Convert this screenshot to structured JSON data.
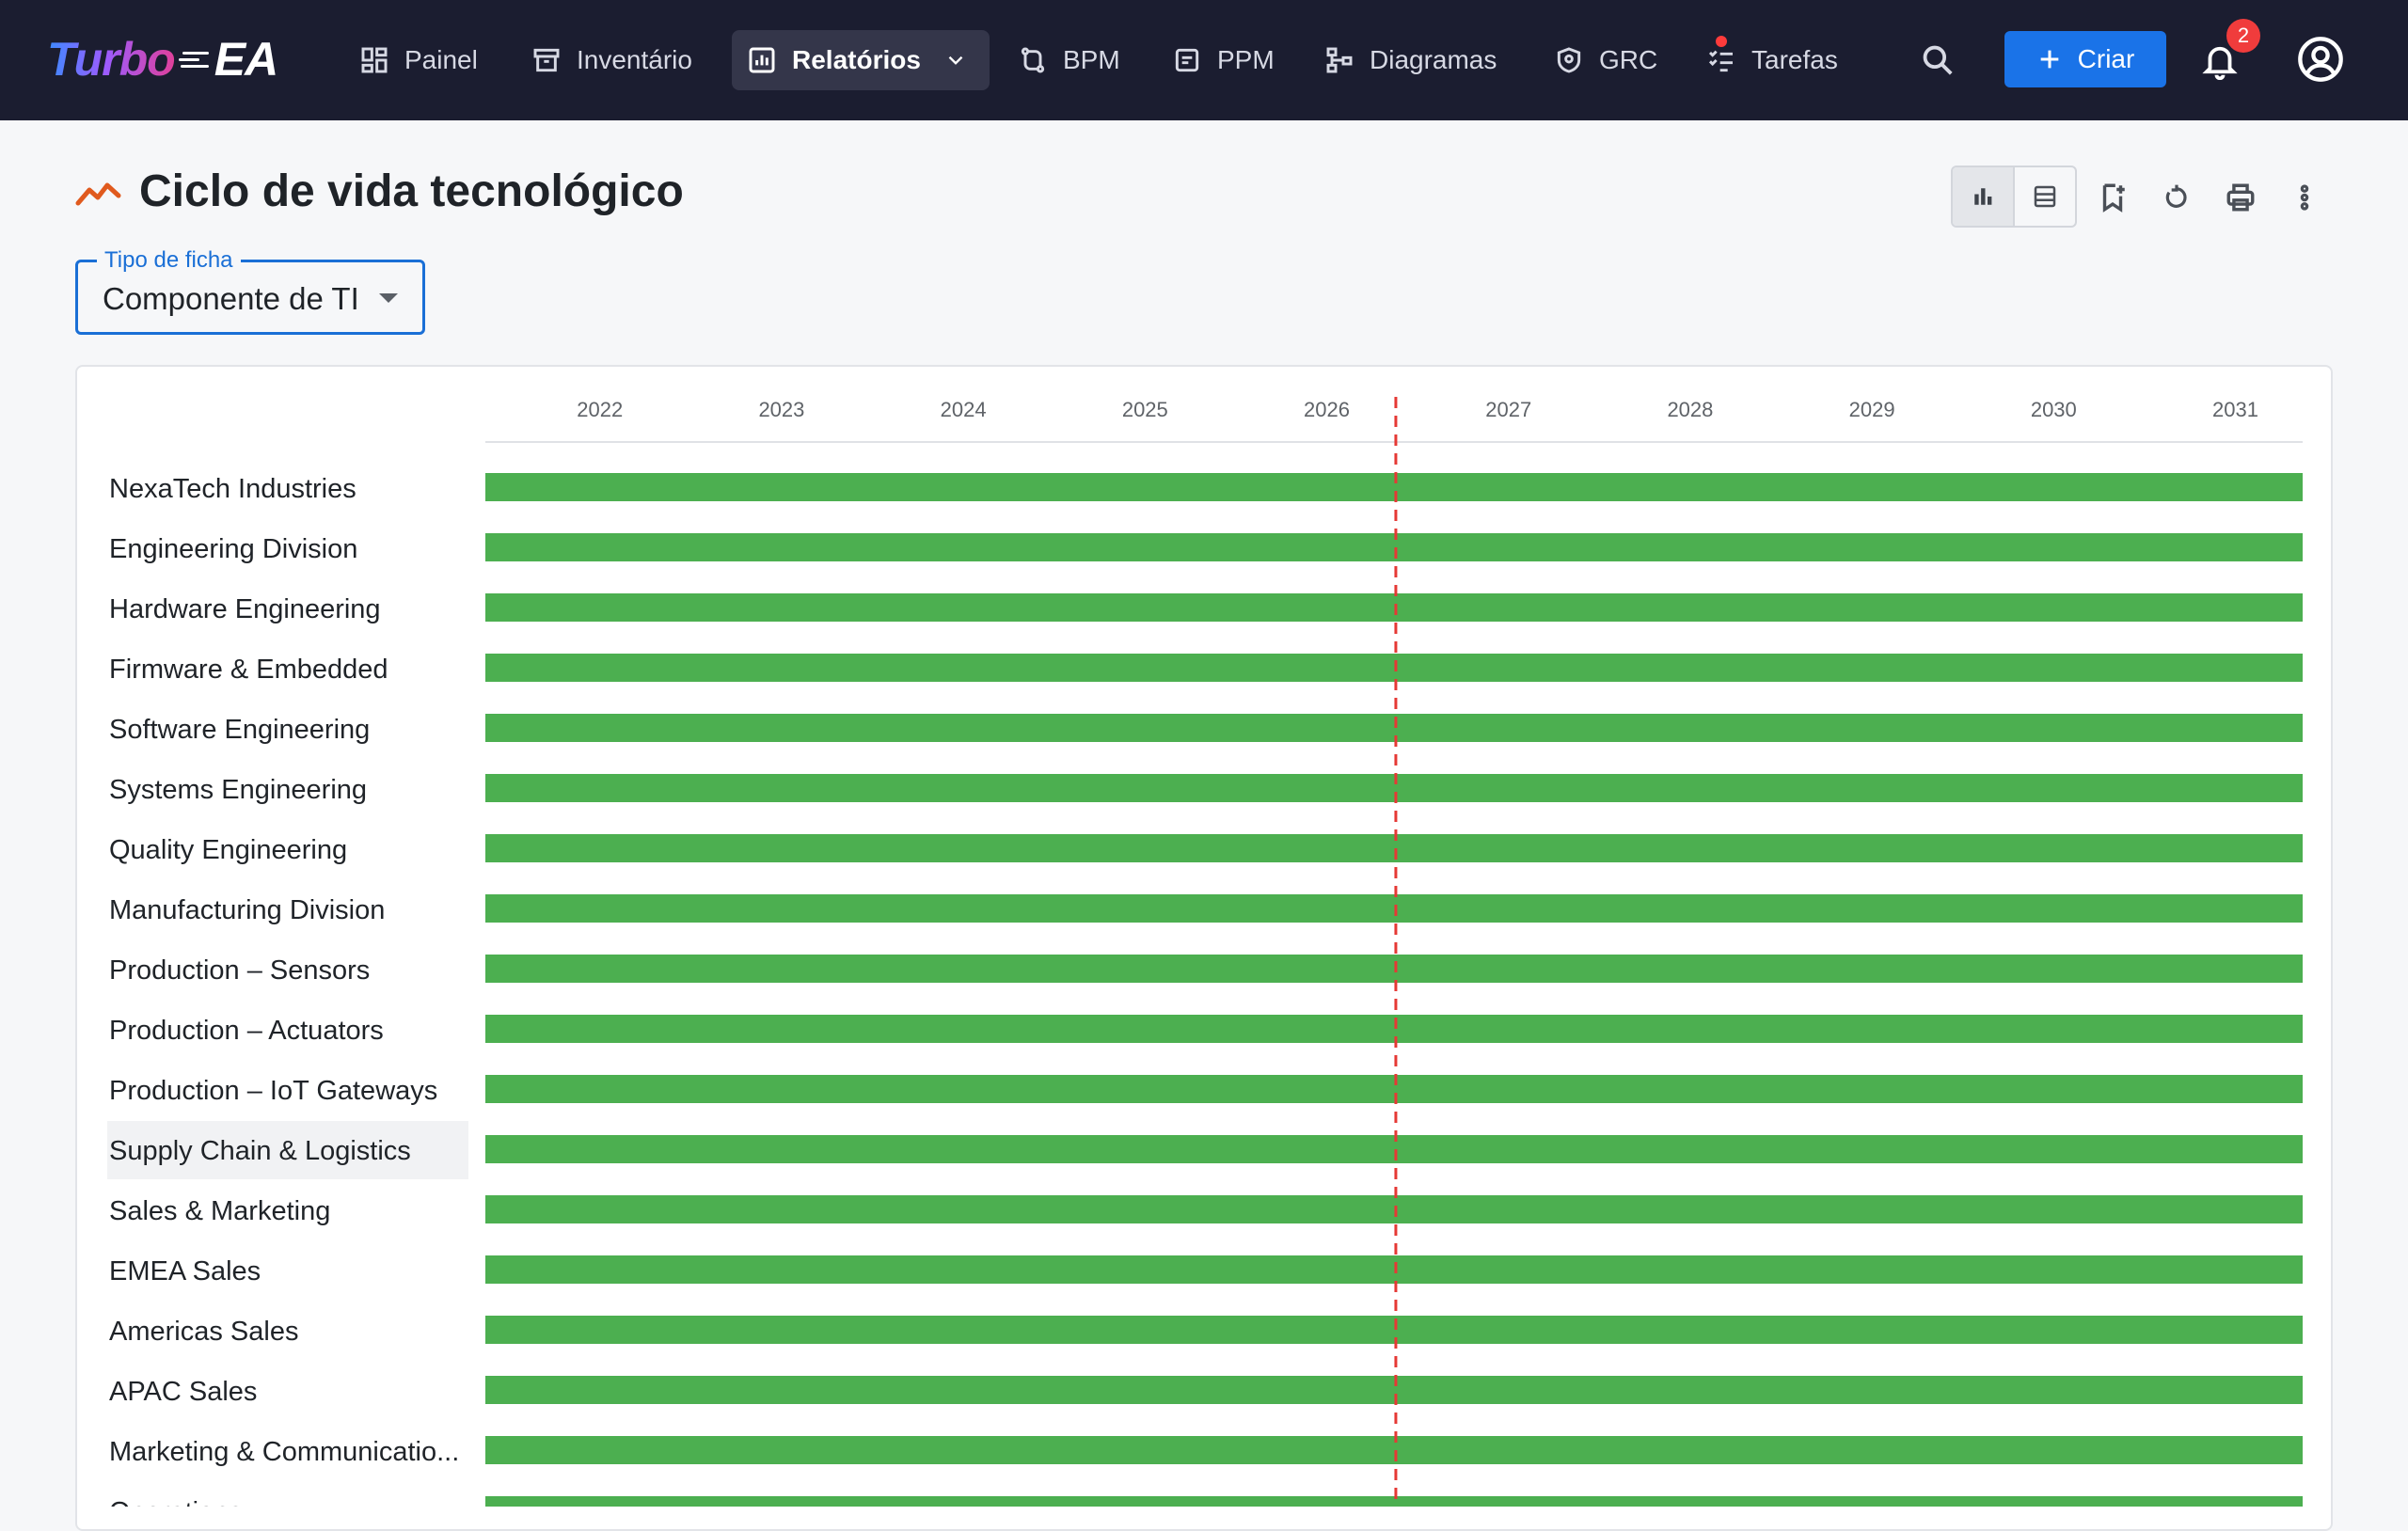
{
  "app": {
    "logo_part1": "Turbo",
    "logo_part2": "EA"
  },
  "nav": [
    {
      "label": "Painel",
      "icon": "dashboard-icon"
    },
    {
      "label": "Inventário",
      "icon": "archive-icon"
    },
    {
      "label": "Relatórios",
      "icon": "report-icon",
      "active": true
    },
    {
      "label": "BPM",
      "icon": "flow-icon"
    },
    {
      "label": "PPM",
      "icon": "project-icon"
    },
    {
      "label": "Diagramas",
      "icon": "diagram-icon"
    },
    {
      "label": "GRC",
      "icon": "shield-icon"
    },
    {
      "label": "Tarefas",
      "icon": "tasks-icon"
    }
  ],
  "actions": {
    "create_label": "Criar",
    "notification_count": "2"
  },
  "page": {
    "title": "Ciclo de vida tecnológico"
  },
  "filter": {
    "legend": "Tipo de ficha",
    "value": "Componente de TI"
  },
  "colors": {
    "bar": "#4caf50",
    "today_line": "#e53935",
    "nav_bg": "#1b1d30",
    "accent": "#1a73e8"
  },
  "chart_data": {
    "type": "gantt-bar",
    "x_years": [
      "2022",
      "2023",
      "2024",
      "2025",
      "2026",
      "2027",
      "2028",
      "2029",
      "2030",
      "2031"
    ],
    "xlim": [
      2021.37,
      2031.37
    ],
    "today_marker": 2026.38,
    "rows": [
      {
        "label": "NexaTech Industries",
        "start": 2021.37,
        "end": 2031.37
      },
      {
        "label": "Engineering Division",
        "start": 2021.37,
        "end": 2031.37
      },
      {
        "label": "Hardware Engineering",
        "start": 2021.37,
        "end": 2031.37
      },
      {
        "label": "Firmware & Embedded",
        "start": 2021.37,
        "end": 2031.37
      },
      {
        "label": "Software Engineering",
        "start": 2021.37,
        "end": 2031.37
      },
      {
        "label": "Systems Engineering",
        "start": 2021.37,
        "end": 2031.37
      },
      {
        "label": "Quality Engineering",
        "start": 2021.37,
        "end": 2031.37
      },
      {
        "label": "Manufacturing Division",
        "start": 2021.37,
        "end": 2031.37
      },
      {
        "label": "Production – Sensors",
        "start": 2021.37,
        "end": 2031.37
      },
      {
        "label": "Production – Actuators",
        "start": 2021.37,
        "end": 2031.37
      },
      {
        "label": "Production – IoT Gateways",
        "start": 2021.37,
        "end": 2031.37
      },
      {
        "label": "Supply Chain & Logistics",
        "start": 2021.37,
        "end": 2031.37,
        "highlighted": true
      },
      {
        "label": "Sales & Marketing",
        "start": 2021.37,
        "end": 2031.37
      },
      {
        "label": "EMEA Sales",
        "start": 2021.37,
        "end": 2031.37
      },
      {
        "label": "Americas Sales",
        "start": 2021.37,
        "end": 2031.37
      },
      {
        "label": "APAC Sales",
        "start": 2021.37,
        "end": 2031.37
      },
      {
        "label": "Marketing & Communicatio...",
        "start": 2021.37,
        "end": 2031.37
      },
      {
        "label": "Operations",
        "start": 2021.37,
        "end": 2031.37
      }
    ]
  }
}
